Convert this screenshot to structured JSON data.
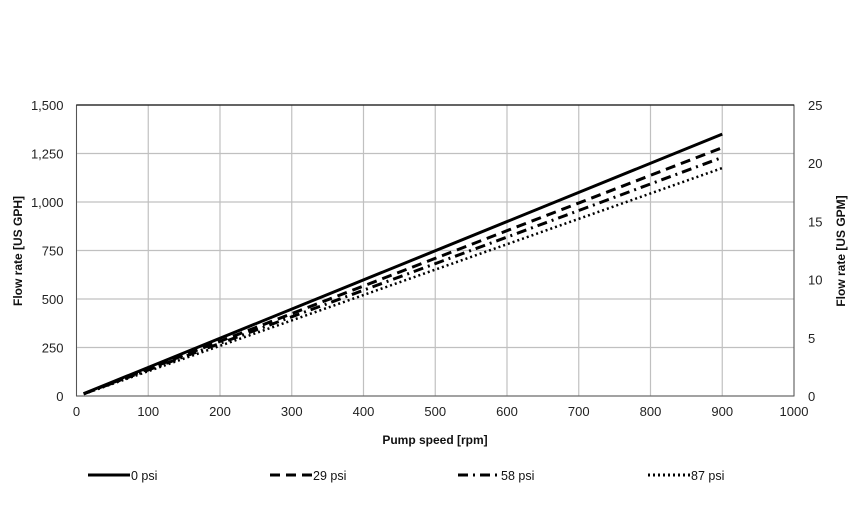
{
  "chart_data": {
    "type": "line",
    "xlabel": "Pump speed [rpm]",
    "ylabel": "Flow rate [US GPH]",
    "y2label": "Flow rate [US GPM]",
    "xlim": [
      0,
      1000
    ],
    "ylim": [
      0,
      1500
    ],
    "y2lim": [
      0,
      25
    ],
    "xticks": [
      "0",
      "100",
      "200",
      "300",
      "400",
      "500",
      "600",
      "700",
      "800",
      "900",
      "1000"
    ],
    "yticks": [
      "0",
      "250",
      "500",
      "750",
      "1,000",
      "1,250",
      "1,500"
    ],
    "y2ticks": [
      "0",
      "5",
      "10",
      "15",
      "20",
      "25"
    ],
    "grid": true,
    "legend_position": "bottom",
    "series": [
      {
        "name": "0 psi",
        "style": "solid",
        "x": [
          10,
          900
        ],
        "y": [
          12,
          1350
        ]
      },
      {
        "name": "29 psi",
        "style": "dashed",
        "x": [
          10,
          900
        ],
        "y": [
          11,
          1280
        ]
      },
      {
        "name": "58 psi",
        "style": "dash-dot",
        "x": [
          10,
          900
        ],
        "y": [
          11,
          1230
        ]
      },
      {
        "name": "87 psi",
        "style": "dotted",
        "x": [
          10,
          900
        ],
        "y": [
          10,
          1175
        ]
      }
    ],
    "colors": {
      "line": "#000000",
      "grid": "#c0c0c0"
    }
  }
}
